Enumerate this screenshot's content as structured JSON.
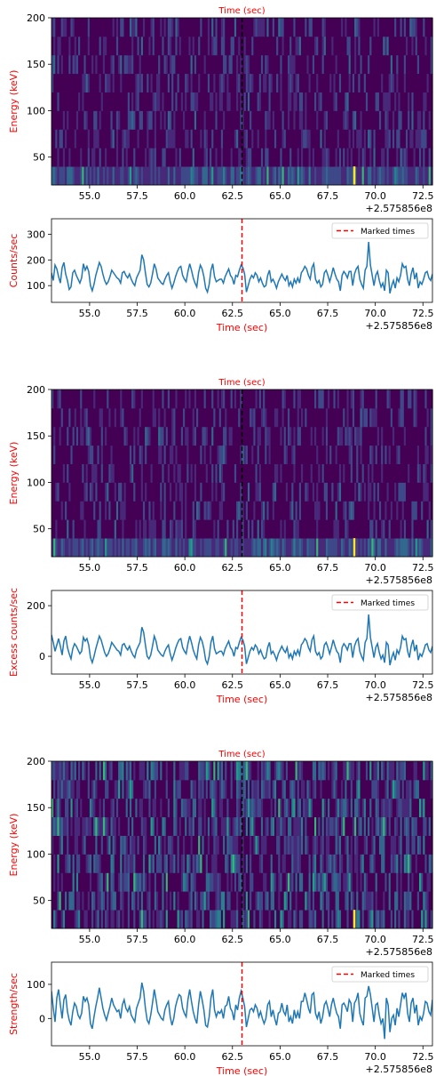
{
  "colors": {
    "axis_label": "#ff0000",
    "series_line": "#1f77b4",
    "marker_line": "#ff0000",
    "heatmap_marker": "#000000",
    "viridis": [
      "#440154",
      "#482878",
      "#3e4989",
      "#31688e",
      "#26828e",
      "#1f9e89",
      "#35b779",
      "#6ece58",
      "#b5de2b",
      "#fde725"
    ]
  },
  "legend_label": "Marked times",
  "offset_label": "+2.575856e8",
  "chart_data": [
    {
      "type": "heatmap",
      "title": "Time (sec)",
      "ylabel": "Energy (keV)",
      "x_range": [
        53.0,
        73.0
      ],
      "y_range": [
        20,
        200
      ],
      "x_ticks": [
        "55.0",
        "57.5",
        "60.0",
        "62.5",
        "65.0",
        "67.5",
        "70.0",
        "72.5"
      ],
      "y_ticks": [
        "50",
        "100",
        "150",
        "200"
      ],
      "energy_bands": 9,
      "marked_time": 63.0,
      "intensity_style": "viridis"
    },
    {
      "type": "line",
      "series": [
        {
          "name": "",
          "values": [
            150,
            120,
            180,
            165,
            135,
            110,
            170,
            190,
            145,
            120,
            85,
            95,
            150,
            160,
            140,
            125,
            110,
            130,
            185,
            160,
            175,
            155,
            100,
            80,
            105,
            140,
            165,
            190,
            175,
            145,
            120,
            105,
            115,
            135,
            160,
            150,
            140,
            130,
            125,
            110,
            150,
            155,
            140,
            130,
            145,
            125,
            110,
            100,
            130,
            145,
            160,
            220,
            200,
            150,
            105,
            95,
            110,
            145,
            185,
            165,
            130,
            120,
            110,
            105,
            125,
            140,
            150,
            115,
            90,
            110,
            135,
            155,
            170,
            175,
            140,
            125,
            115,
            155,
            185,
            160,
            130,
            110,
            95,
            150,
            180,
            165,
            135,
            90,
            75,
            105,
            160,
            185,
            135,
            115,
            120,
            125,
            125,
            110,
            135,
            150,
            165,
            140,
            130,
            105,
            140,
            135,
            160,
            180,
            170,
            145,
            75,
            100,
            125,
            140,
            130,
            150,
            140,
            115,
            130,
            110,
            95,
            100,
            140,
            160,
            115,
            125,
            110,
            90,
            115,
            130,
            145,
            130,
            120,
            140,
            100,
            115,
            95,
            125,
            110,
            130,
            110,
            150,
            160,
            175,
            165,
            140,
            125,
            170,
            185,
            125,
            110,
            120,
            95,
            105,
            150,
            160,
            140,
            115,
            140,
            170,
            145,
            125,
            115,
            80,
            140,
            155,
            145,
            130,
            155,
            155,
            100,
            145,
            165,
            175,
            125,
            105,
            90,
            160,
            175,
            270,
            180,
            140,
            100,
            140,
            155,
            120,
            95,
            110,
            80,
            160,
            150,
            70,
            100,
            120,
            90,
            130,
            115,
            140,
            185,
            170,
            175,
            125,
            100,
            145,
            170,
            125,
            150,
            90,
            115,
            105,
            125,
            150,
            155,
            130,
            120,
            145
          ]
        }
      ],
      "xlabel": "Time (sec)",
      "ylabel": "Counts/sec",
      "x_range": [
        53.0,
        73.0
      ],
      "ylim": [
        35,
        360
      ],
      "x_ticks": [
        "55.0",
        "57.5",
        "60.0",
        "62.5",
        "65.0",
        "67.5",
        "70.0",
        "72.5"
      ],
      "y_ticks": [
        "100",
        "200",
        "300"
      ],
      "y_tick_values": [
        100,
        200,
        300
      ],
      "marked_time": 63.0,
      "legend": "top-right"
    },
    {
      "type": "heatmap",
      "title": "Time (sec)",
      "ylabel": "Energy (keV)",
      "x_range": [
        53.0,
        73.0
      ],
      "y_range": [
        20,
        200
      ],
      "x_ticks": [
        "55.0",
        "57.5",
        "60.0",
        "62.5",
        "65.0",
        "67.5",
        "70.0",
        "72.5"
      ],
      "y_ticks": [
        "50",
        "100",
        "150",
        "200"
      ],
      "energy_bands": 9,
      "marked_time": 63.0,
      "intensity_style": "viridis"
    },
    {
      "type": "line",
      "series": [
        {
          "name": "",
          "values": [
            85,
            55,
            20,
            45,
            70,
            40,
            5,
            60,
            80,
            35,
            10,
            -10,
            30,
            50,
            40,
            25,
            10,
            20,
            75,
            60,
            70,
            45,
            -5,
            -25,
            0,
            30,
            55,
            80,
            65,
            40,
            15,
            0,
            10,
            30,
            55,
            45,
            35,
            25,
            20,
            5,
            45,
            50,
            35,
            25,
            40,
            20,
            5,
            -5,
            25,
            40,
            55,
            115,
            95,
            45,
            0,
            -10,
            5,
            40,
            80,
            60,
            25,
            15,
            5,
            0,
            20,
            35,
            45,
            10,
            -15,
            5,
            30,
            50,
            65,
            70,
            35,
            20,
            10,
            50,
            80,
            55,
            25,
            5,
            -10,
            45,
            75,
            60,
            30,
            -15,
            -30,
            0,
            55,
            80,
            30,
            10,
            15,
            20,
            20,
            5,
            30,
            45,
            60,
            35,
            25,
            0,
            35,
            30,
            55,
            75,
            65,
            40,
            -30,
            -5,
            20,
            35,
            25,
            45,
            35,
            10,
            25,
            5,
            -10,
            -5,
            35,
            55,
            10,
            20,
            5,
            -15,
            10,
            25,
            40,
            25,
            15,
            35,
            -5,
            10,
            -10,
            20,
            5,
            25,
            5,
            45,
            55,
            70,
            60,
            35,
            20,
            65,
            80,
            20,
            5,
            15,
            -10,
            0,
            45,
            55,
            35,
            10,
            35,
            65,
            40,
            20,
            10,
            -25,
            35,
            50,
            40,
            25,
            50,
            50,
            -5,
            40,
            60,
            70,
            20,
            0,
            -15,
            55,
            70,
            165,
            75,
            35,
            -5,
            35,
            50,
            15,
            -10,
            5,
            -25,
            55,
            45,
            -35,
            -5,
            15,
            -15,
            25,
            10,
            35,
            80,
            65,
            70,
            20,
            -5,
            40,
            65,
            20,
            45,
            -15,
            10,
            0,
            20,
            45,
            50,
            25,
            15,
            40
          ]
        }
      ],
      "xlabel": "Time (sec)",
      "ylabel": "Excess counts/sec",
      "x_range": [
        53.0,
        73.0
      ],
      "ylim": [
        -70,
        260
      ],
      "x_ticks": [
        "55.0",
        "57.5",
        "60.0",
        "62.5",
        "65.0",
        "67.5",
        "70.0",
        "72.5"
      ],
      "y_ticks": [
        "0",
        "200"
      ],
      "y_tick_values": [
        0,
        200
      ],
      "marked_time": 63.0,
      "legend": "top-right"
    },
    {
      "type": "heatmap",
      "title": "Time (sec)",
      "ylabel": "Energy (keV)",
      "x_range": [
        53.0,
        73.0
      ],
      "y_range": [
        20,
        200
      ],
      "x_ticks": [
        "55.0",
        "57.5",
        "60.0",
        "62.5",
        "65.0",
        "67.5",
        "70.0",
        "72.5"
      ],
      "y_ticks": [
        "50",
        "100",
        "150",
        "200"
      ],
      "energy_bands": 9,
      "marked_time": 63.0,
      "intensity_style": "viridis"
    },
    {
      "type": "line",
      "series": [
        {
          "name": "",
          "values": [
            80,
            30,
            -10,
            60,
            85,
            40,
            0,
            55,
            70,
            20,
            -5,
            -20,
            20,
            45,
            35,
            10,
            0,
            15,
            65,
            50,
            60,
            40,
            -15,
            -30,
            5,
            35,
            60,
            90,
            60,
            30,
            10,
            -5,
            15,
            35,
            60,
            40,
            30,
            20,
            25,
            0,
            40,
            55,
            30,
            20,
            35,
            10,
            0,
            -10,
            30,
            45,
            60,
            105,
            80,
            30,
            -5,
            -15,
            10,
            45,
            85,
            55,
            20,
            10,
            0,
            -5,
            25,
            40,
            50,
            5,
            -20,
            0,
            35,
            55,
            70,
            65,
            30,
            15,
            5,
            55,
            85,
            50,
            20,
            0,
            -15,
            40,
            80,
            55,
            25,
            -20,
            -25,
            5,
            60,
            85,
            25,
            5,
            20,
            15,
            25,
            0,
            35,
            40,
            65,
            30,
            20,
            -5,
            40,
            25,
            60,
            80,
            60,
            35,
            -25,
            0,
            25,
            30,
            20,
            40,
            30,
            5,
            20,
            0,
            -15,
            0,
            40,
            50,
            5,
            25,
            0,
            -20,
            15,
            20,
            45,
            20,
            10,
            40,
            -10,
            5,
            -15,
            25,
            0,
            20,
            0,
            50,
            50,
            75,
            55,
            30,
            15,
            70,
            75,
            15,
            0,
            20,
            -15,
            5,
            40,
            50,
            30,
            5,
            40,
            60,
            35,
            15,
            5,
            -30,
            40,
            45,
            35,
            20,
            55,
            45,
            -10,
            45,
            55,
            75,
            15,
            -5,
            -20,
            60,
            65,
            95,
            70,
            30,
            -10,
            40,
            45,
            10,
            -15,
            0,
            -60,
            60,
            40,
            -40,
            0,
            10,
            -20,
            30,
            5,
            40,
            75,
            60,
            75,
            15,
            -10,
            45,
            60,
            15,
            40,
            -20,
            5,
            -5,
            15,
            50,
            45,
            20,
            10,
            55
          ]
        }
      ],
      "xlabel": "Time (sec)",
      "ylabel": "Strength/sec",
      "x_range": [
        53.0,
        73.0
      ],
      "ylim": [
        -80,
        165
      ],
      "x_ticks": [
        "55.0",
        "57.5",
        "60.0",
        "62.5",
        "65.0",
        "67.5",
        "70.0",
        "72.5"
      ],
      "y_ticks": [
        "0",
        "100"
      ],
      "y_tick_values": [
        0,
        100
      ],
      "marked_time": 63.0,
      "legend": "top-right"
    }
  ]
}
